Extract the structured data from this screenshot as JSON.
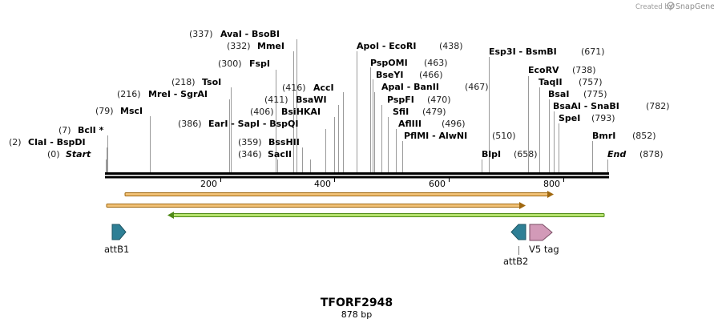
{
  "credit": {
    "prefix": "Created by",
    "brand": "SnapGene"
  },
  "map": {
    "title": "TFORF2948",
    "length_label": "878 bp",
    "length_bp": 878,
    "tick_labels": [
      "200",
      "400",
      "600",
      "800"
    ]
  },
  "sites": [
    {
      "id": "start",
      "pos_label": "(0)",
      "name": "Start",
      "pos": 0
    },
    {
      "id": "clai",
      "pos_label": "(2)",
      "name": "ClaI  -  BspDI",
      "pos": 2
    },
    {
      "id": "bcli",
      "pos_label": "(7)",
      "name": "BclI *",
      "pos": 7
    },
    {
      "id": "msci",
      "pos_label": "(79)",
      "name": "MscI",
      "pos": 79
    },
    {
      "id": "mrei",
      "pos_label": "(216)",
      "name": "MreI  -  SgrAI",
      "pos": 216
    },
    {
      "id": "tsoi",
      "pos_label": "(218)",
      "name": "TsoI",
      "pos": 218
    },
    {
      "id": "fspi",
      "pos_label": "(300)",
      "name": "FspI",
      "pos": 300
    },
    {
      "id": "mmei",
      "pos_label": "(332)",
      "name": "MmeI",
      "pos": 332
    },
    {
      "id": "avai",
      "pos_label": "(337)",
      "name": "AvaI  -  BsoBI",
      "pos": 337
    },
    {
      "id": "saci",
      "pos_label": "(346)",
      "name": "SacII",
      "pos": 346
    },
    {
      "id": "bsshii",
      "pos_label": "(359)",
      "name": "BssHII",
      "pos": 359
    },
    {
      "id": "eari",
      "pos_label": "(386)",
      "name": "EarI  -  SapI  -  BspQI",
      "pos": 386
    },
    {
      "id": "bsihkai",
      "pos_label": "(406)",
      "name": "BsiHKAI",
      "pos": 406
    },
    {
      "id": "bsawi",
      "pos_label": "(411)",
      "name": "BsaWI",
      "pos": 411
    },
    {
      "id": "acci",
      "pos_label": "(416)",
      "name": "AccI",
      "pos": 416
    },
    {
      "id": "apoi",
      "pos_label": "(438)",
      "name": "ApoI  -  EcoRI",
      "pos": 438
    },
    {
      "id": "pspomi",
      "pos_label": "(463)",
      "name": "PspOMI",
      "pos": 463
    },
    {
      "id": "bseyi",
      "pos_label": "(466)",
      "name": "BseYI",
      "pos": 466
    },
    {
      "id": "apai",
      "pos_label": "(467)",
      "name": "ApaI  -  BanII",
      "pos": 467
    },
    {
      "id": "pspfi",
      "pos_label": "(470)",
      "name": "PspFI",
      "pos": 470
    },
    {
      "id": "sfii",
      "pos_label": "(479)",
      "name": "SfiI",
      "pos": 479
    },
    {
      "id": "afliii",
      "pos_label": "(496)",
      "name": "AflIII",
      "pos": 496
    },
    {
      "id": "pflmi",
      "pos_label": "(510)",
      "name": "PflMI  -  AlwNI",
      "pos": 510
    },
    {
      "id": "blpi",
      "pos_label": "(658)",
      "name": "BlpI",
      "pos": 658
    },
    {
      "id": "esp3i",
      "pos_label": "(671)",
      "name": "Esp3I  -  BsmBI",
      "pos": 671
    },
    {
      "id": "ecorv",
      "pos_label": "(738)",
      "name": "EcoRV",
      "pos": 738
    },
    {
      "id": "taqii",
      "pos_label": "(757)",
      "name": "TaqII",
      "pos": 757
    },
    {
      "id": "bsai",
      "pos_label": "(775)",
      "name": "BsaI",
      "pos": 775
    },
    {
      "id": "bsaai",
      "pos_label": "(782)",
      "name": "BsaAI  -  SnaBI",
      "pos": 782
    },
    {
      "id": "spei",
      "pos_label": "(793)",
      "name": "SpeI",
      "pos": 793
    },
    {
      "id": "bmri",
      "pos_label": "(852)",
      "name": "BmrI",
      "pos": 852
    },
    {
      "id": "end",
      "pos_label": "(878)",
      "name": "End",
      "pos": 878
    }
  ],
  "features": [
    {
      "id": "attb1",
      "label": "attB1"
    },
    {
      "id": "attb2",
      "label": "attB2"
    },
    {
      "id": "v5tag",
      "label": "V5 tag"
    }
  ],
  "colors": {
    "orf_orange": "#f2c277",
    "orf_stroke": "#a0680f",
    "orf_green": "#b6e36e",
    "orf_green_stroke": "#4f8a16",
    "att_blue": "#2e7f95",
    "v5_pink": "#d29ab8"
  }
}
